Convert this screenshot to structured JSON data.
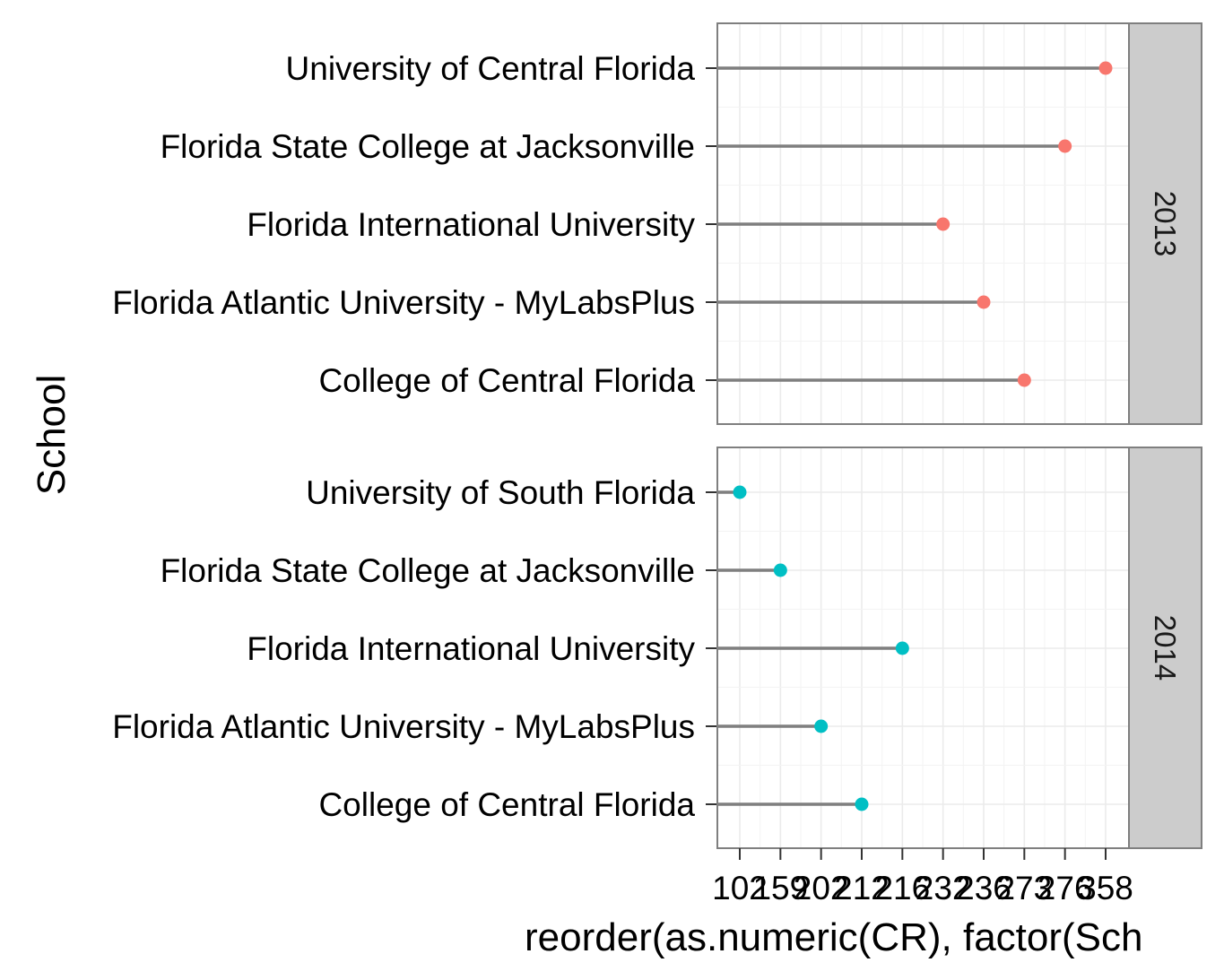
{
  "chart_data": {
    "type": "scatter",
    "style": "lollipop",
    "xlabel": "reorder(as.numeric(CR), factor(Sch",
    "ylabel": "School",
    "x_tick_labels": [
      "102",
      "159",
      "202",
      "212",
      "216",
      "232",
      "236",
      "273",
      "276",
      "358"
    ],
    "grid": true,
    "panels": [
      {
        "facet": "2013",
        "color": "#F8766D",
        "categories": [
          "University of Central Florida",
          "Florida State College at Jacksonville",
          "Florida International University",
          "Florida Atlantic University - MyLabsPlus",
          "College of Central Florida"
        ],
        "values": [
          "358",
          "276",
          "232",
          "236",
          "273"
        ]
      },
      {
        "facet": "2014",
        "color": "#00BFC4",
        "categories": [
          "University of South Florida",
          "Florida State College at Jacksonville",
          "Florida International University",
          "Florida Atlantic University - MyLabsPlus",
          "College of Central Florida"
        ],
        "values": [
          "102",
          "159",
          "216",
          "202",
          "212"
        ]
      }
    ]
  }
}
